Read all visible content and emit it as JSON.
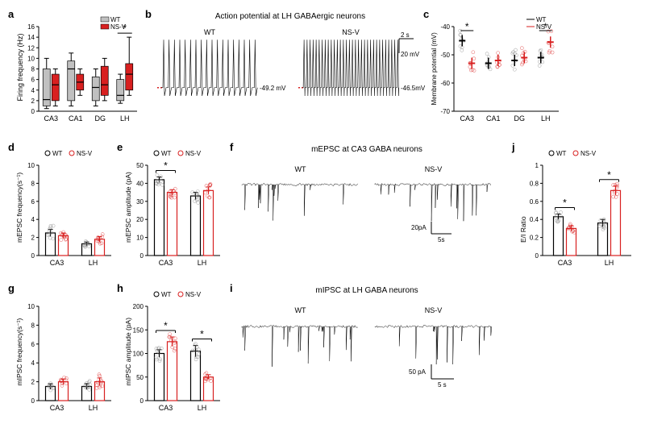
{
  "colors": {
    "wt": "#c0c0c0",
    "nsv": "#d82020",
    "wt_line": "#000000",
    "nsv_line": "#d82020",
    "wt_circle": "#808080",
    "nsv_circle": "#d82020",
    "axis": "#000000",
    "trace": "#000000"
  },
  "panel_a": {
    "label": "a",
    "ylabel": "Firing frequency (Hz)",
    "ylim": [
      0,
      16
    ],
    "ytick_step": 2,
    "categories": [
      "CA3",
      "CA1",
      "DG",
      "LH"
    ],
    "wt_boxes": [
      {
        "q1": 1,
        "med": 2.2,
        "q3": 8,
        "whisker_lo": 0.5,
        "whisker_hi": 10
      },
      {
        "q1": 2,
        "med": 8,
        "q3": 9.5,
        "whisker_lo": 1,
        "whisker_hi": 11
      },
      {
        "q1": 2,
        "med": 4.5,
        "q3": 6.5,
        "whisker_lo": 1,
        "whisker_hi": 8
      },
      {
        "q1": 2,
        "med": 3,
        "q3": 6,
        "whisker_lo": 1.5,
        "whisker_hi": 7
      }
    ],
    "nsv_boxes": [
      {
        "q1": 2,
        "med": 5,
        "q3": 7,
        "whisker_lo": 1,
        "whisker_hi": 8
      },
      {
        "q1": 4,
        "med": 5.5,
        "q3": 7,
        "whisker_lo": 3,
        "whisker_hi": 8
      },
      {
        "q1": 3,
        "med": 5,
        "q3": 8.5,
        "whisker_lo": 2,
        "whisker_hi": 10
      },
      {
        "q1": 4,
        "med": 7,
        "q3": 9,
        "whisker_lo": 3,
        "whisker_hi": 14
      }
    ],
    "sig": [
      {
        "i": 3,
        "label": "*"
      }
    ],
    "legend": {
      "wt": "WT",
      "nsv": "NS-V"
    }
  },
  "panel_b": {
    "label": "b",
    "title": "Action potential at LH GABAergic neurons",
    "wt_label": "WT",
    "nsv_label": "NS-V",
    "wt_rmp": "-49.2 mV",
    "nsv_rmp": "-46.5mV",
    "scale_x": "2 s",
    "scale_y": "20 mV"
  },
  "panel_c": {
    "label": "c",
    "ylabel": "Membrane potential (mV)",
    "ylim": [
      -70,
      -40
    ],
    "ytick_step": 10,
    "categories": [
      "CA3",
      "CA1",
      "DG",
      "LH"
    ],
    "wt_means": [
      -45,
      -53,
      -52,
      -51
    ],
    "nsv_means": [
      -53,
      -52,
      -51,
      -45.5
    ],
    "sig": [
      {
        "i": 0,
        "label": "*"
      },
      {
        "i": 3,
        "label": "*"
      }
    ],
    "legend": {
      "wt": "WT",
      "nsv": "NS-V"
    }
  },
  "panel_d": {
    "label": "d",
    "ylabel": "mEPSC frequency(s⁻¹)",
    "ylim": [
      0,
      10
    ],
    "ytick_step": 2,
    "categories": [
      "CA3",
      "LH"
    ],
    "wt_means": [
      2.5,
      1.3
    ],
    "wt_sems": [
      0.4,
      0.2
    ],
    "nsv_means": [
      2.2,
      1.8
    ],
    "nsv_sems": [
      0.3,
      0.3
    ],
    "legend": {
      "wt": "WT",
      "nsv": "NS-V"
    }
  },
  "panel_e": {
    "label": "e",
    "ylabel": "mEPSC amplitude (pA)",
    "ylim": [
      0,
      50
    ],
    "ytick_step": 10,
    "categories": [
      "CA3",
      "LH"
    ],
    "wt_means": [
      42,
      33
    ],
    "wt_sems": [
      1.5,
      2
    ],
    "nsv_means": [
      35,
      36
    ],
    "nsv_sems": [
      1.5,
      2
    ],
    "sig": [
      {
        "i": 0,
        "label": "*"
      }
    ],
    "legend": {
      "wt": "WT",
      "nsv": "NS-V"
    }
  },
  "panel_f": {
    "label": "f",
    "title": "mEPSC at CA3 GABA neurons",
    "wt_label": "WT",
    "nsv_label": "NS-V",
    "scale_x": "5s",
    "scale_y": "20pA"
  },
  "panel_g": {
    "label": "g",
    "ylabel": "mIPSC frequency(s⁻¹)",
    "ylim": [
      0,
      10
    ],
    "ytick_step": 2,
    "categories": [
      "CA3",
      "LH"
    ],
    "wt_means": [
      1.5,
      1.5
    ],
    "wt_sems": [
      0.3,
      0.3
    ],
    "nsv_means": [
      2.0,
      2.0
    ],
    "nsv_sems": [
      0.3,
      0.4
    ]
  },
  "panel_h": {
    "label": "h",
    "ylabel": "mIPSC amplitude (pA)",
    "ylim": [
      0,
      200
    ],
    "ytick_step": 50,
    "categories": [
      "CA3",
      "LH"
    ],
    "wt_means": [
      100,
      105
    ],
    "wt_sems": [
      8,
      12
    ],
    "nsv_means": [
      125,
      50
    ],
    "nsv_sems": [
      10,
      5
    ],
    "sig": [
      {
        "i": 0,
        "label": "*"
      },
      {
        "i": 1,
        "label": "*"
      }
    ],
    "legend": {
      "wt": "WT",
      "nsv": "NS-V"
    }
  },
  "panel_i": {
    "label": "i",
    "title": "mIPSC at LH GABA neurons",
    "wt_label": "WT",
    "nsv_label": "NS-V",
    "scale_x": "5 s",
    "scale_y": "50 pA"
  },
  "panel_j": {
    "label": "j",
    "ylabel": "E/I Ratio",
    "ylim": [
      0,
      1.0
    ],
    "ytick_step": 0.2,
    "categories": [
      "CA3",
      "LH"
    ],
    "wt_means": [
      0.43,
      0.36
    ],
    "wt_sems": [
      0.03,
      0.04
    ],
    "nsv_means": [
      0.3,
      0.72
    ],
    "nsv_sems": [
      0.03,
      0.05
    ],
    "sig": [
      {
        "i": 0,
        "label": "*"
      },
      {
        "i": 1,
        "label": "*"
      }
    ],
    "legend": {
      "wt": "WT",
      "nsv": "NS-V"
    }
  }
}
